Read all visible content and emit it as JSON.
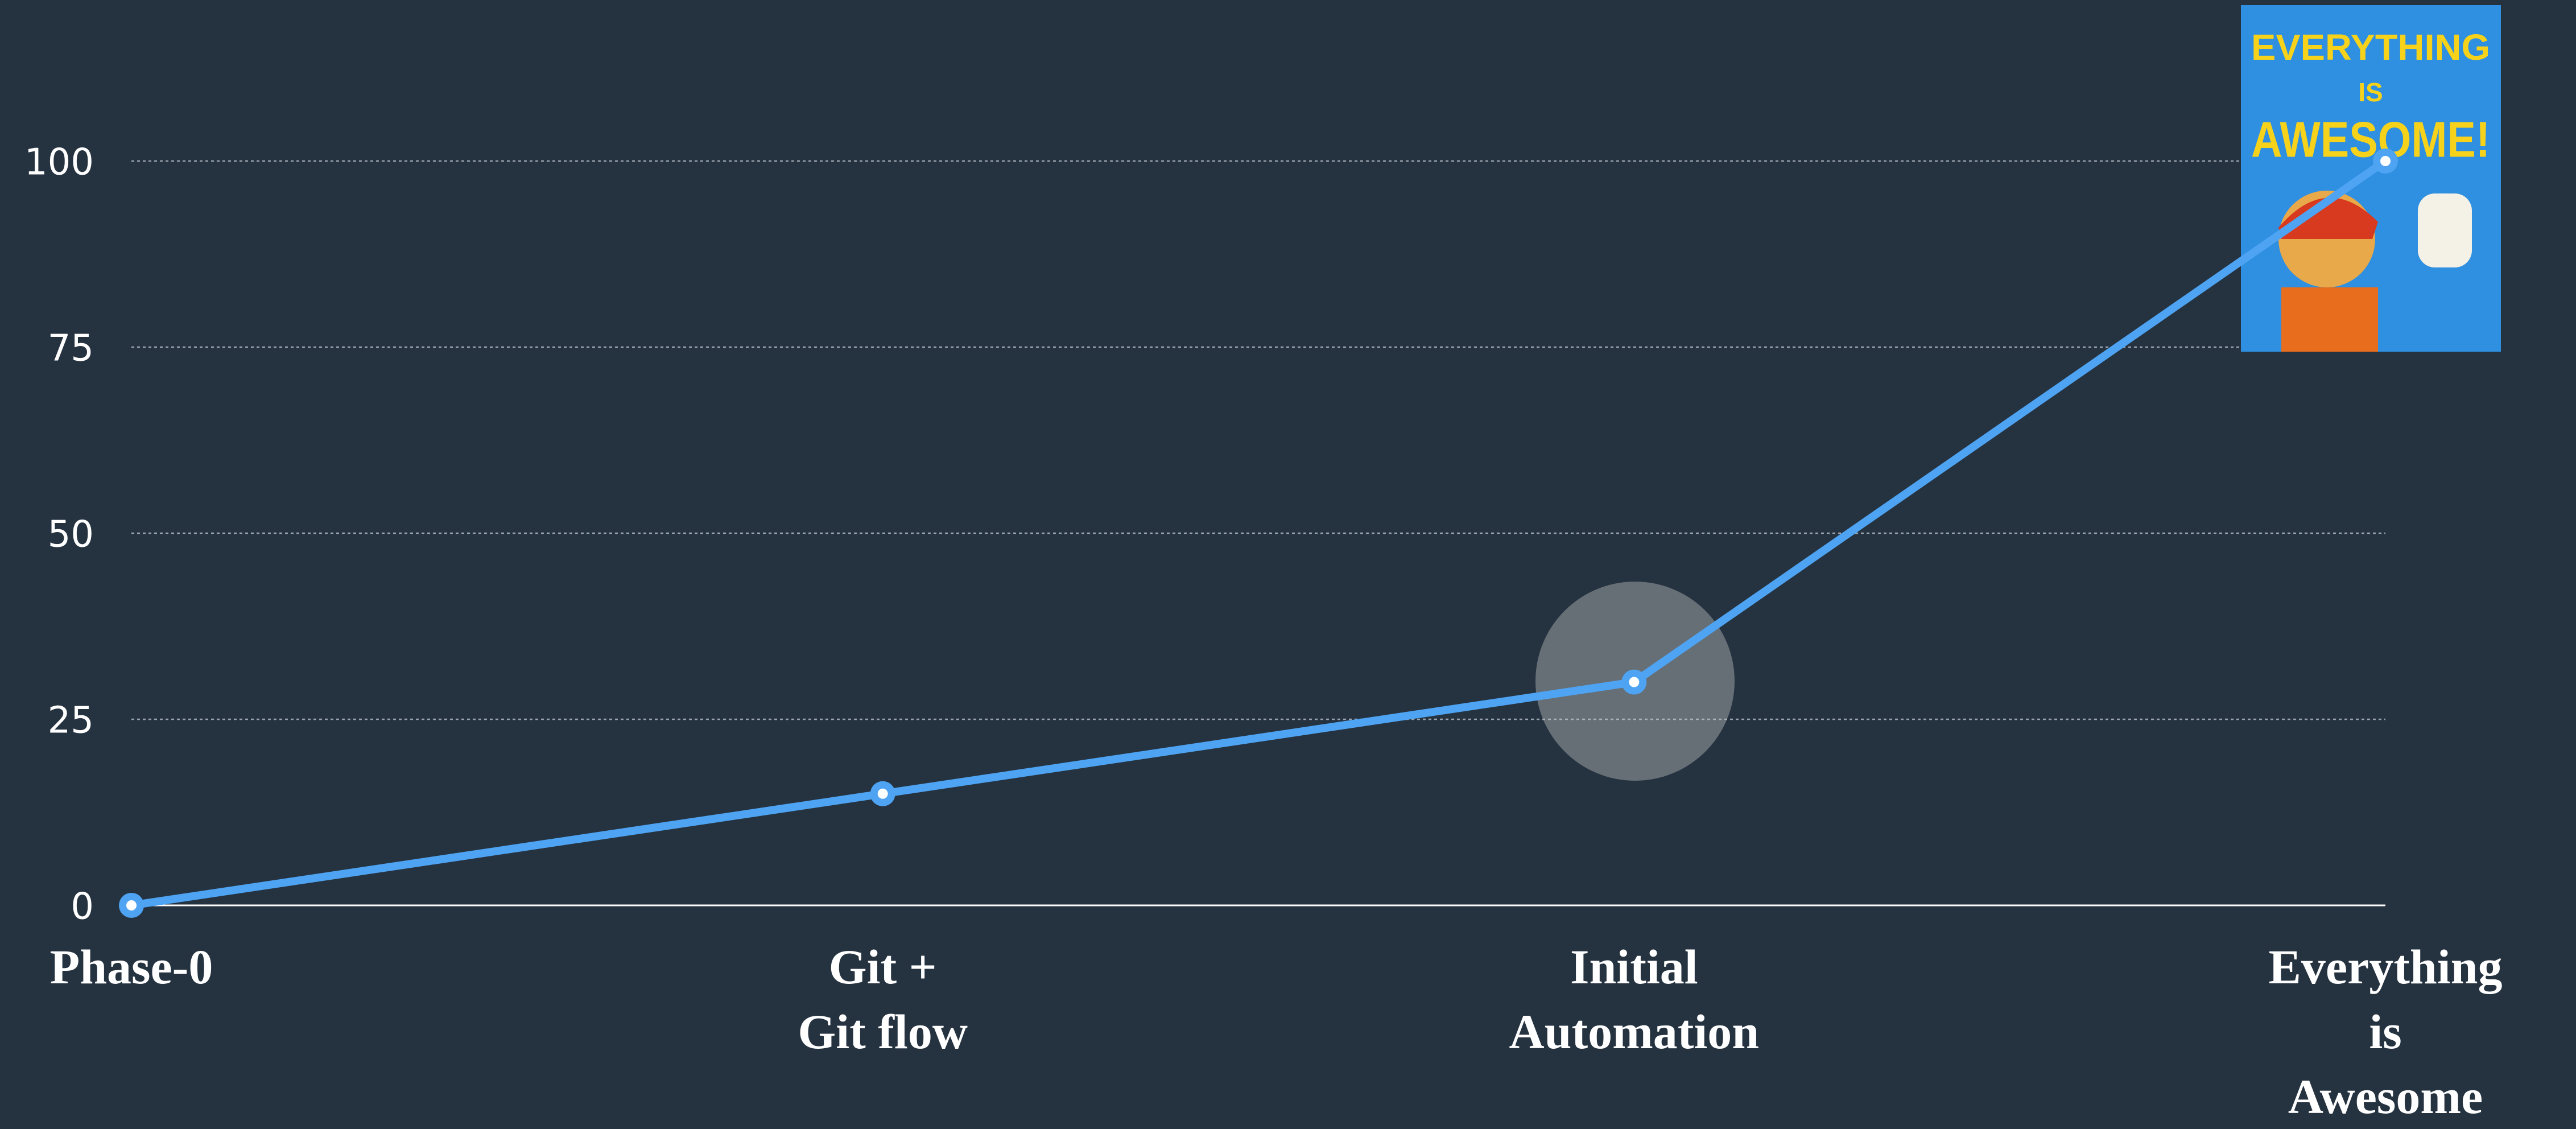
{
  "chart_data": {
    "type": "line",
    "categories": [
      "Phase-0",
      "Git +\nGit flow",
      "Initial\nAutomation",
      "Everything is\nAwesome"
    ],
    "values": [
      0,
      15,
      30,
      100
    ],
    "color": "#4ea4f2",
    "ylim": [
      0,
      100
    ],
    "yticks": [
      0,
      25,
      50,
      75,
      100
    ],
    "grid": true,
    "image": {
      "lines": [
        "EVERYTHING",
        "IS",
        "AWESOME!"
      ]
    }
  }
}
